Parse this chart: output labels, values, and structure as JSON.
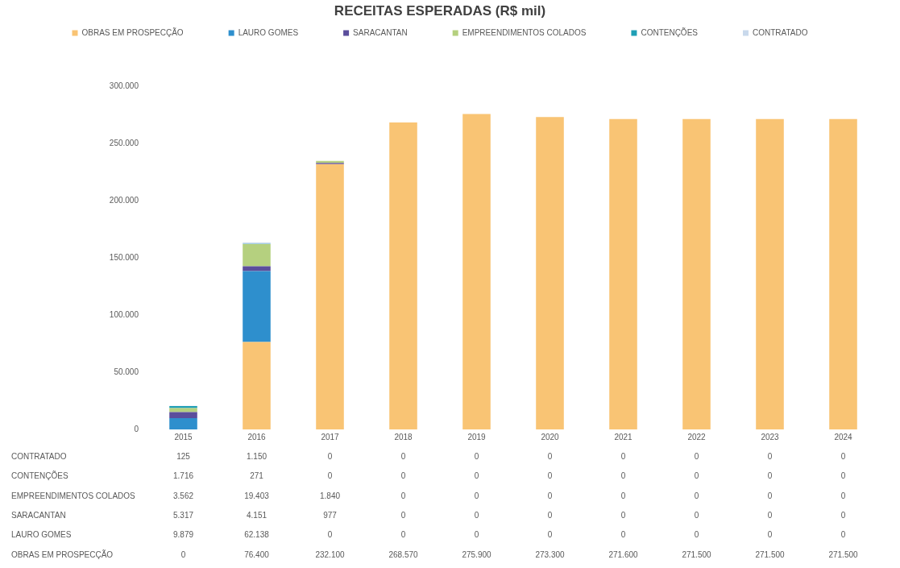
{
  "chart_data": {
    "type": "bar",
    "title": "RECEITAS ESPERADAS (R$ mil)",
    "stacked": true,
    "legend": "top",
    "grid": false,
    "categories": [
      "2015",
      "2016",
      "2017",
      "2018",
      "2019",
      "2020",
      "2021",
      "2022",
      "2023",
      "2024"
    ],
    "ylim": [
      0,
      300000
    ],
    "yticks": [
      0,
      {
        "value": 50000,
        "label": "50.000"
      },
      {
        "value": 100000,
        "label": "100.000"
      },
      {
        "value": 150000,
        "label": "150.000"
      },
      {
        "value": 200000,
        "label": "200.000"
      },
      {
        "value": 250000,
        "label": "250.000"
      },
      {
        "value": 300000,
        "label": "300.000"
      }
    ],
    "series": [
      {
        "name": "OBRAS EM PROSPECÇÃO",
        "color": "#f9c474",
        "values": [
          0,
          76400,
          232100,
          268570,
          275900,
          273300,
          271600,
          271500,
          271500,
          271500
        ],
        "value_labels": [
          "0",
          "76.400",
          "232.100",
          "268.570",
          "275.900",
          "273.300",
          "271.600",
          "271.500",
          "271.500",
          "271.500"
        ]
      },
      {
        "name": "LAURO GOMES",
        "color": "#2e8fcd",
        "values": [
          9879,
          62138,
          0,
          0,
          0,
          0,
          0,
          0,
          0,
          0
        ],
        "value_labels": [
          "9.879",
          "62.138",
          "0",
          "0",
          "0",
          "0",
          "0",
          "0",
          "0",
          "0"
        ]
      },
      {
        "name": "SARACANTAN",
        "color": "#5b4e9c",
        "values": [
          5317,
          4151,
          977,
          0,
          0,
          0,
          0,
          0,
          0,
          0
        ],
        "value_labels": [
          "5.317",
          "4.151",
          "977",
          "0",
          "0",
          "0",
          "0",
          "0",
          "0",
          "0"
        ]
      },
      {
        "name": "EMPREENDIMENTOS COLADOS",
        "color": "#b5d07f",
        "values": [
          3562,
          19403,
          1840,
          0,
          0,
          0,
          0,
          0,
          0,
          0
        ],
        "value_labels": [
          "3.562",
          "19.403",
          "1.840",
          "0",
          "0",
          "0",
          "0",
          "0",
          "0",
          "0"
        ]
      },
      {
        "name": "CONTENÇÕES",
        "color": "#1f9fb5",
        "values": [
          1716,
          271,
          0,
          0,
          0,
          0,
          0,
          0,
          0,
          0
        ],
        "value_labels": [
          "1.716",
          "271",
          "0",
          "0",
          "0",
          "0",
          "0",
          "0",
          "0",
          "0"
        ]
      },
      {
        "name": "CONTRATADO",
        "color": "#c9d9ec",
        "values": [
          125,
          1150,
          0,
          0,
          0,
          0,
          0,
          0,
          0,
          0
        ],
        "value_labels": [
          "125",
          "1.150",
          "0",
          "0",
          "0",
          "0",
          "0",
          "0",
          "0",
          "0"
        ]
      }
    ]
  }
}
